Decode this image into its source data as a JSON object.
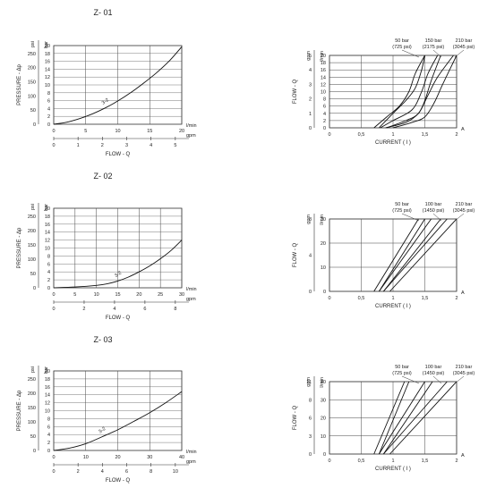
{
  "chart_data": [
    {
      "type": "line",
      "title": "Z- 01",
      "xlabel": "FLOW - Q",
      "ylabel": "PRESSURE - Δp",
      "x_unit": "l/min",
      "x_unit2": "gpm",
      "y_unit": "bar",
      "y_unit2": "psi",
      "x_ticks": [
        "0",
        "5",
        "10",
        "15",
        "20"
      ],
      "x2_ticks": [
        "0",
        "1",
        "2",
        "3",
        "4",
        "5"
      ],
      "y_ticks": [
        "0",
        "2",
        "4",
        "6",
        "8",
        "10",
        "12",
        "14",
        "16",
        "18",
        "20"
      ],
      "y2_ticks": [
        "0",
        "50",
        "100",
        "150",
        "200",
        "250"
      ],
      "xlim": [
        0,
        20
      ],
      "ylim": [
        0,
        20
      ],
      "series": [
        {
          "name": "3-2",
          "x": [
            0,
            2,
            4,
            6,
            8,
            10,
            12,
            14,
            16,
            18,
            20
          ],
          "y": [
            0,
            0.5,
            1.4,
            2.6,
            4.1,
            5.9,
            8.0,
            10.4,
            13.0,
            16.0,
            19.7
          ]
        }
      ]
    },
    {
      "type": "line",
      "xlabel": "CURRENT ( I )",
      "ylabel": "FLOW - Q",
      "x_unit": "A",
      "y_unit": "l/min",
      "y_unit2": "gpm",
      "x_ticks": [
        "0",
        "0,5",
        "1",
        "1,5",
        "2"
      ],
      "y_ticks": [
        "0",
        "2",
        "4",
        "6",
        "8",
        "10",
        "12",
        "14",
        "16",
        "18",
        "20"
      ],
      "y2_ticks": [
        "0",
        "1",
        "2",
        "3",
        "4",
        "5"
      ],
      "xlim": [
        0,
        2
      ],
      "ylim": [
        0,
        20
      ],
      "pressure_labels": [
        {
          "bar": "50 bar",
          "psi": "(725 psi)"
        },
        {
          "bar": "150 bar",
          "psi": "(2175 psi)"
        },
        {
          "bar": "210 bar",
          "psi": "(3045 psi)"
        }
      ],
      "series": [
        {
          "name": "50 bar up",
          "x": [
            0.78,
            1.0,
            1.2,
            1.35,
            1.45,
            1.5
          ],
          "y": [
            0,
            4.0,
            7.5,
            11,
            16,
            20
          ]
        },
        {
          "name": "50 bar down",
          "x": [
            0.7,
            0.9,
            1.1,
            1.25,
            1.35,
            1.5
          ],
          "y": [
            0,
            3.0,
            6.0,
            10,
            15,
            20
          ]
        },
        {
          "name": "150 bar up",
          "x": [
            0.88,
            1.2,
            1.4,
            1.5,
            1.6,
            1.75
          ],
          "y": [
            0,
            1.5,
            4.0,
            7.5,
            13,
            20
          ]
        },
        {
          "name": "150 bar down",
          "x": [
            0.8,
            1.0,
            1.3,
            1.45,
            1.55,
            1.7
          ],
          "y": [
            0,
            2.0,
            5.0,
            10,
            15,
            20
          ]
        },
        {
          "name": "210 bar up",
          "x": [
            1.0,
            1.3,
            1.5,
            1.65,
            1.78,
            2.0
          ],
          "y": [
            0,
            1.5,
            3.0,
            7.0,
            12,
            20
          ]
        },
        {
          "name": "210 bar down",
          "x": [
            0.9,
            1.2,
            1.4,
            1.55,
            1.7,
            1.95
          ],
          "y": [
            0,
            2.0,
            4.0,
            9.0,
            14,
            20
          ]
        }
      ]
    },
    {
      "type": "line",
      "title": "Z- 02",
      "xlabel": "FLOW - Q",
      "ylabel": "PRESSURE - Δp",
      "x_unit": "l/min",
      "x_unit2": "gpm",
      "y_unit": "bar",
      "y_unit2": "psi",
      "x_ticks": [
        "0",
        "5",
        "10",
        "15",
        "20",
        "25",
        "30"
      ],
      "x2_ticks": [
        "0",
        "2",
        "4",
        "6",
        "8"
      ],
      "y_ticks": [
        "0",
        "2",
        "4",
        "6",
        "8",
        "10",
        "12",
        "14",
        "16",
        "18",
        "20"
      ],
      "y2_ticks": [
        "0",
        "50",
        "100",
        "150",
        "200",
        "250"
      ],
      "xlim": [
        0,
        30
      ],
      "ylim": [
        0,
        20
      ],
      "series": [
        {
          "name": "3-2",
          "x": [
            0,
            5,
            10,
            12.5,
            15,
            17.5,
            20,
            22.5,
            25,
            27.5,
            30
          ],
          "y": [
            0,
            0.2,
            0.6,
            1.0,
            1.7,
            2.7,
            4.0,
            5.5,
            7.3,
            9.4,
            12.0
          ]
        }
      ]
    },
    {
      "type": "line",
      "xlabel": "CURRENT ( I )",
      "ylabel": "FLOW - Q",
      "x_unit": "A",
      "y_unit": "l/min",
      "y_unit2": "gpm",
      "x_ticks": [
        "0",
        "0,5",
        "1",
        "1,5",
        "2"
      ],
      "y_ticks": [
        "0",
        "10",
        "20",
        "30"
      ],
      "y2_ticks": [
        "0",
        "4",
        "8"
      ],
      "xlim": [
        0,
        2
      ],
      "ylim": [
        0,
        30
      ],
      "pressure_labels": [
        {
          "bar": "50 bar",
          "psi": "(725 psi)"
        },
        {
          "bar": "100 bar",
          "psi": "(1450 psi)"
        },
        {
          "bar": "210 bar",
          "psi": "(3045 psi)"
        }
      ],
      "series": [
        {
          "name": "50 bar up",
          "x": [
            0.78,
            1.5
          ],
          "y": [
            0,
            30
          ]
        },
        {
          "name": "50 bar down",
          "x": [
            0.7,
            1.4
          ],
          "y": [
            0,
            30
          ]
        },
        {
          "name": "100 bar up",
          "x": [
            0.85,
            1.75
          ],
          "y": [
            0,
            30
          ]
        },
        {
          "name": "100 bar down",
          "x": [
            0.78,
            1.6
          ],
          "y": [
            0,
            30
          ]
        },
        {
          "name": "210 bar up",
          "x": [
            0.95,
            2.0
          ],
          "y": [
            0,
            30
          ]
        },
        {
          "name": "210 bar down",
          "x": [
            0.85,
            1.85
          ],
          "y": [
            0,
            30
          ]
        }
      ]
    },
    {
      "type": "line",
      "title": "Z- 03",
      "xlabel": "FLOW - Q",
      "ylabel": "PRESSURE - Δp",
      "x_unit": "l/min",
      "x_unit2": "gpm",
      "y_unit": "bar",
      "y_unit2": "psi",
      "x_ticks": [
        "0",
        "10",
        "20",
        "30",
        "40"
      ],
      "x2_ticks": [
        "0",
        "2",
        "4",
        "6",
        "8",
        "10"
      ],
      "y_ticks": [
        "0",
        "2",
        "4",
        "6",
        "8",
        "10",
        "12",
        "14",
        "16",
        "18",
        "20"
      ],
      "y2_ticks": [
        "0",
        "50",
        "100",
        "150",
        "200",
        "250"
      ],
      "xlim": [
        0,
        40
      ],
      "ylim": [
        0,
        20
      ],
      "series": [
        {
          "name": "3-2",
          "x": [
            0,
            5,
            10,
            15,
            20,
            25,
            30,
            35,
            40
          ],
          "y": [
            0,
            0.6,
            1.7,
            3.4,
            5.2,
            7.3,
            9.5,
            12.0,
            14.8
          ]
        }
      ]
    },
    {
      "type": "line",
      "xlabel": "CURRENT ( I )",
      "ylabel": "FLOW - Q",
      "x_unit": "A",
      "y_unit": "l/min",
      "y_unit2": "gpm",
      "x_ticks": [
        "0",
        "0,5",
        "1",
        "1,5",
        "2"
      ],
      "y_ticks": [
        "0",
        "10",
        "20",
        "30",
        "40"
      ],
      "y2_ticks": [
        "0",
        "3",
        "6",
        "8",
        "11"
      ],
      "xlim": [
        0,
        2
      ],
      "ylim": [
        0,
        40
      ],
      "pressure_labels": [
        {
          "bar": "50 bar",
          "psi": "(725 psi)"
        },
        {
          "bar": "100 bar",
          "psi": "(1450 psi)"
        },
        {
          "bar": "210 bar",
          "psi": "(3045 psi)"
        }
      ],
      "series": [
        {
          "name": "50 bar up",
          "x": [
            0.78,
            1.25
          ],
          "y": [
            0,
            40
          ]
        },
        {
          "name": "50 bar down",
          "x": [
            0.7,
            1.18
          ],
          "y": [
            0,
            40
          ]
        },
        {
          "name": "100 bar up",
          "x": [
            0.85,
            1.62
          ],
          "y": [
            0,
            40
          ]
        },
        {
          "name": "100 bar down",
          "x": [
            0.78,
            1.5
          ],
          "y": [
            0,
            40
          ]
        },
        {
          "name": "210 bar up",
          "x": [
            0.95,
            2.0
          ],
          "y": [
            0,
            40
          ]
        },
        {
          "name": "210 bar down",
          "x": [
            0.85,
            1.85
          ],
          "y": [
            0,
            40
          ]
        }
      ]
    }
  ]
}
